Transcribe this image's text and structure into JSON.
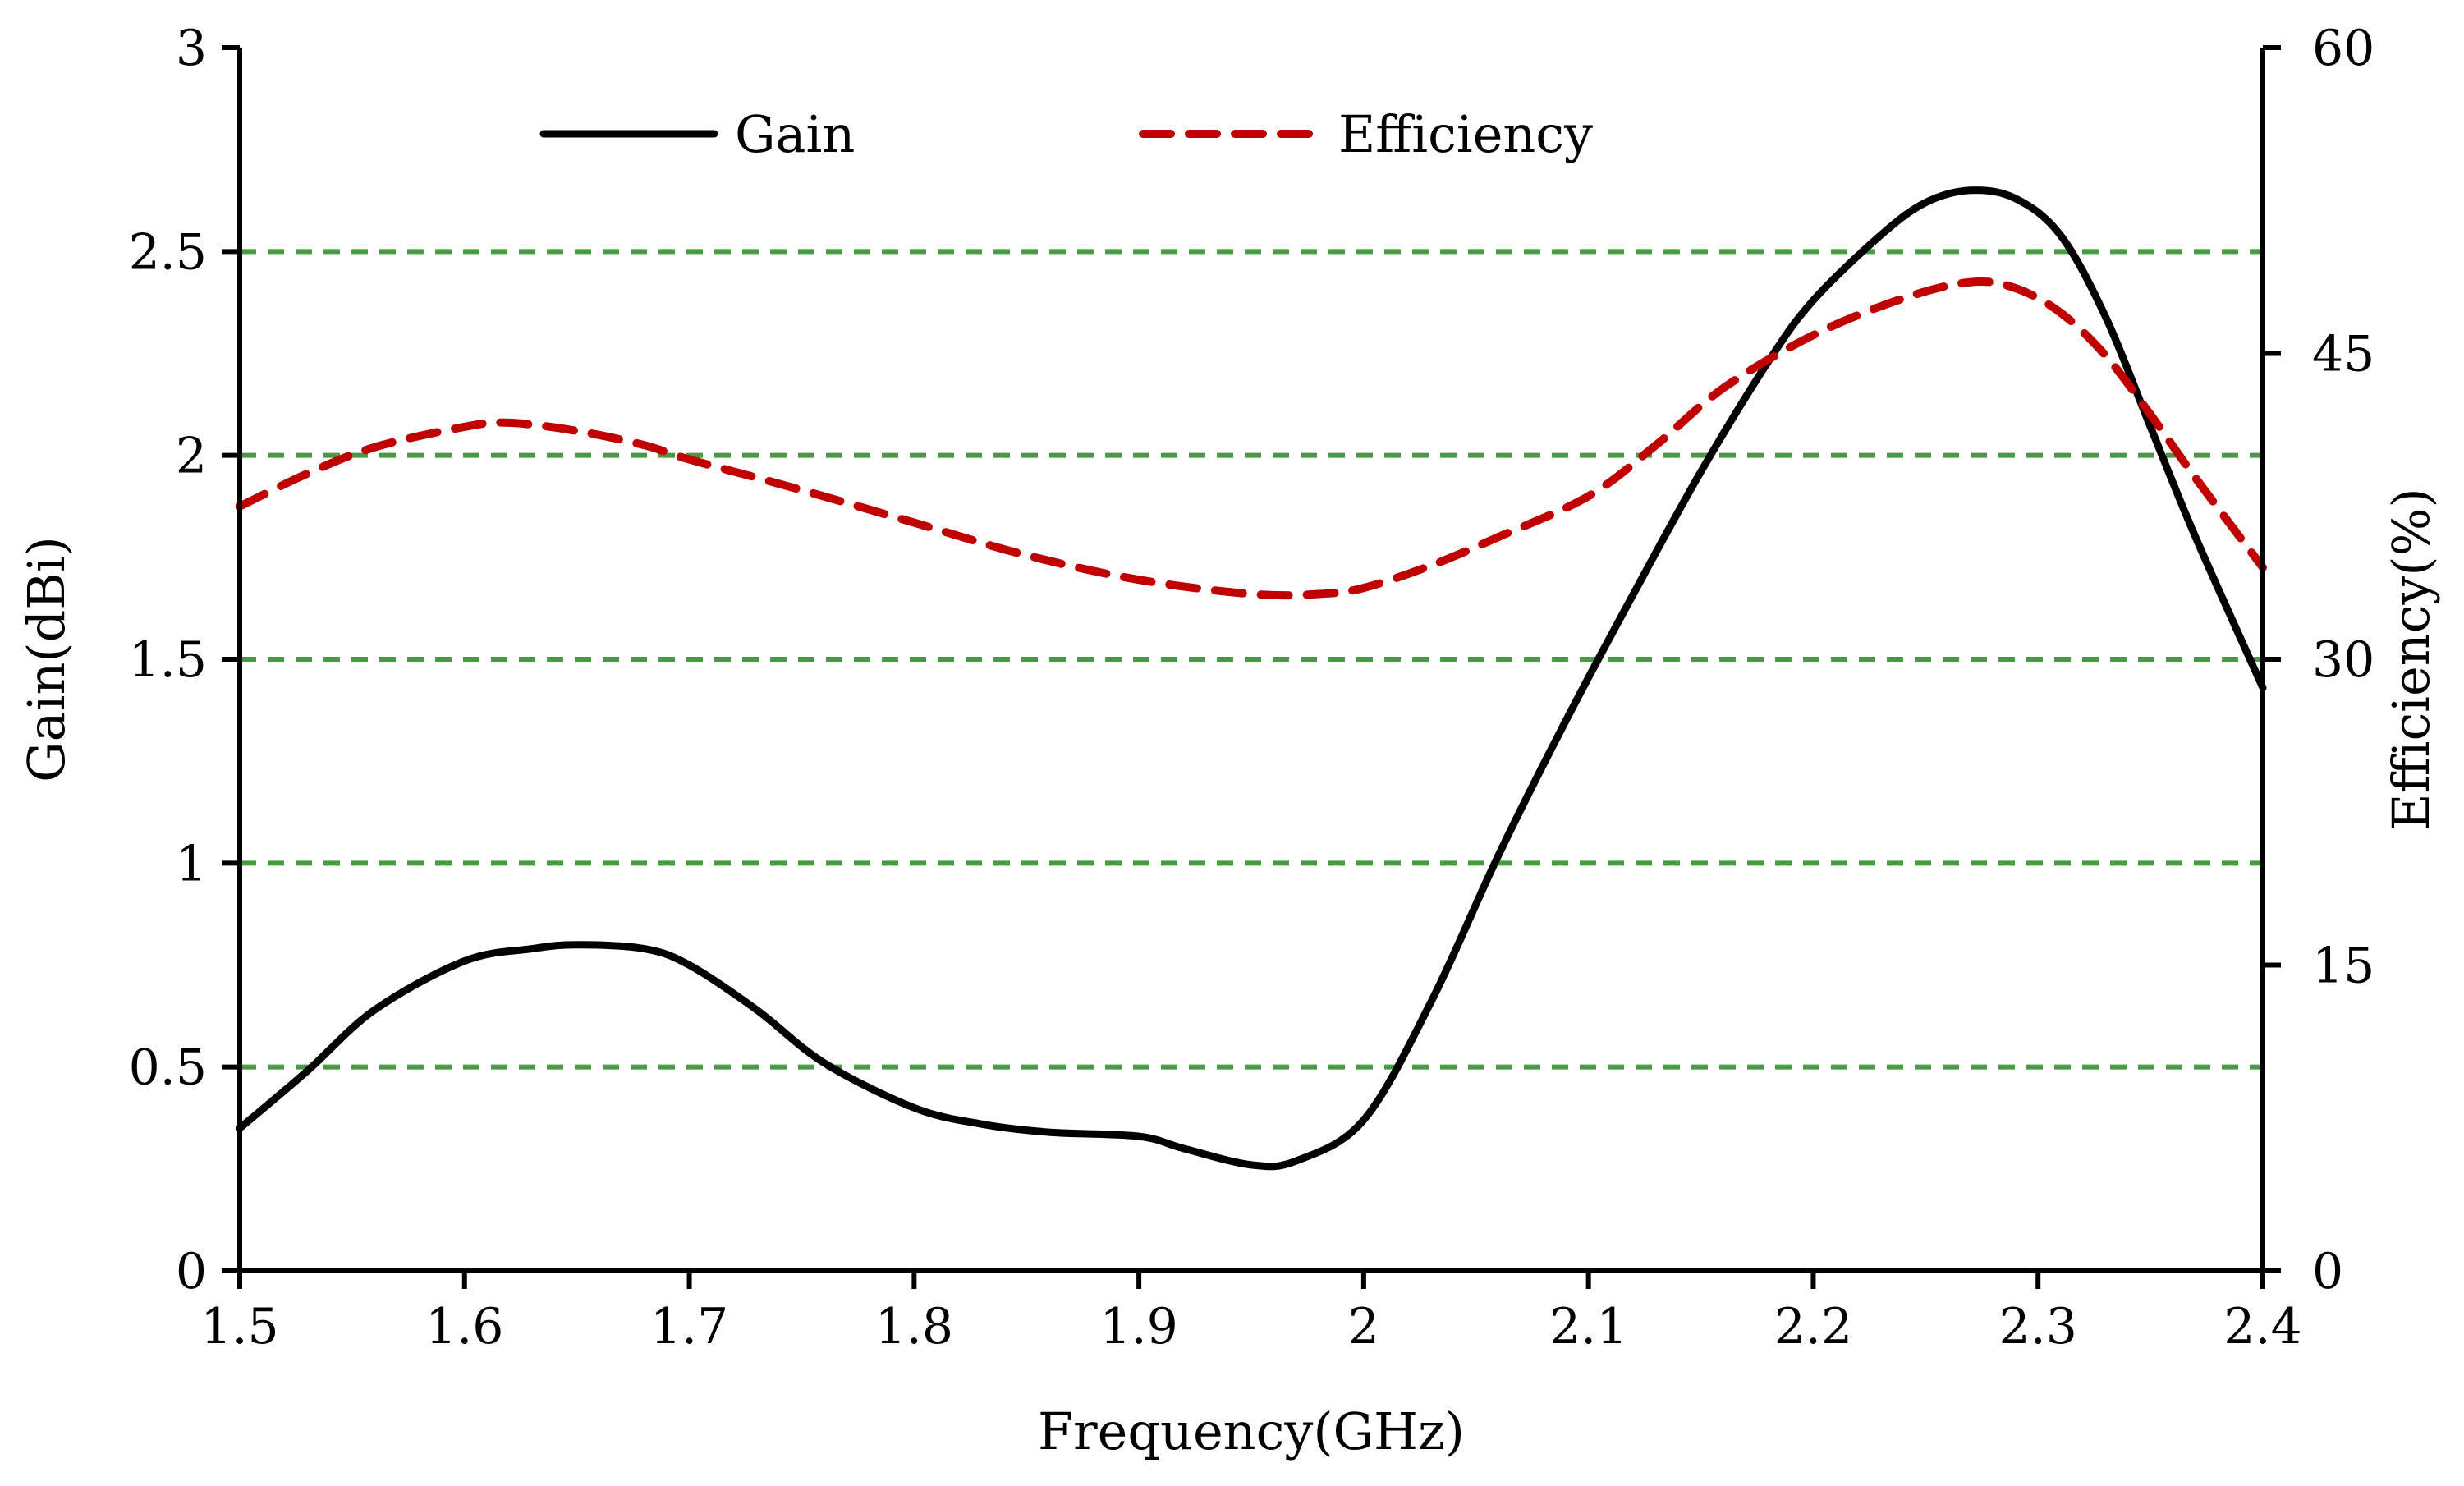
{
  "colors": {
    "gain": "#000000",
    "efficiency": "#c00000",
    "grid": "#4a9a45",
    "axis": "#000000"
  },
  "chart_data": {
    "type": "line",
    "title": "",
    "xlabel": "Frequency(GHz)",
    "ylabel": "Gain(dBi)",
    "y2label": "Efficiency(%)",
    "xlim": [
      1.5,
      2.4
    ],
    "ylim": [
      0,
      3
    ],
    "y2lim": [
      0,
      60
    ],
    "xticks": [
      "1.5",
      "1.6",
      "1.7",
      "1.8",
      "1.9",
      "2",
      "2.1",
      "2.2",
      "2.3",
      "2.4"
    ],
    "yticks": [
      "0",
      "0.5",
      "1",
      "1.5",
      "2",
      "2.5",
      "3"
    ],
    "y2ticks": [
      "0",
      "15",
      "30",
      "45",
      "60"
    ],
    "grid": "horizontal dashed",
    "legend_position": "top",
    "series": [
      {
        "name": "Gain",
        "axis": "left",
        "style": "solid",
        "x": [
          1.5,
          1.53,
          1.56,
          1.6,
          1.63,
          1.65,
          1.68,
          1.7,
          1.73,
          1.76,
          1.8,
          1.83,
          1.86,
          1.9,
          1.92,
          1.95,
          1.97,
          2.0,
          2.03,
          2.06,
          2.09,
          2.12,
          2.15,
          2.18,
          2.2,
          2.23,
          2.25,
          2.27,
          2.29,
          2.31,
          2.33,
          2.35,
          2.37,
          2.4
        ],
        "values": [
          0.35,
          0.49,
          0.64,
          0.76,
          0.79,
          0.8,
          0.79,
          0.75,
          0.64,
          0.51,
          0.4,
          0.36,
          0.34,
          0.33,
          0.3,
          0.26,
          0.27,
          0.37,
          0.66,
          1.02,
          1.35,
          1.66,
          1.96,
          2.23,
          2.38,
          2.54,
          2.62,
          2.65,
          2.63,
          2.54,
          2.34,
          2.07,
          1.8,
          1.43
        ]
      },
      {
        "name": "Efficiency",
        "axis": "right",
        "style": "dashed",
        "x": [
          1.5,
          1.53,
          1.56,
          1.6,
          1.62,
          1.65,
          1.68,
          1.7,
          1.75,
          1.8,
          1.85,
          1.9,
          1.95,
          1.98,
          2.0,
          2.03,
          2.06,
          2.1,
          2.13,
          2.16,
          2.2,
          2.24,
          2.27,
          2.29,
          2.31,
          2.33,
          2.35,
          2.37,
          2.4
        ],
        "values": [
          37.5,
          39.1,
          40.4,
          41.4,
          41.6,
          41.2,
          40.5,
          39.8,
          38.3,
          36.7,
          35.1,
          33.9,
          33.2,
          33.2,
          33.5,
          34.6,
          36.0,
          38.0,
          40.5,
          43.3,
          45.9,
          47.7,
          48.5,
          48.2,
          47.0,
          44.9,
          42.0,
          38.9,
          34.5
        ]
      }
    ]
  }
}
